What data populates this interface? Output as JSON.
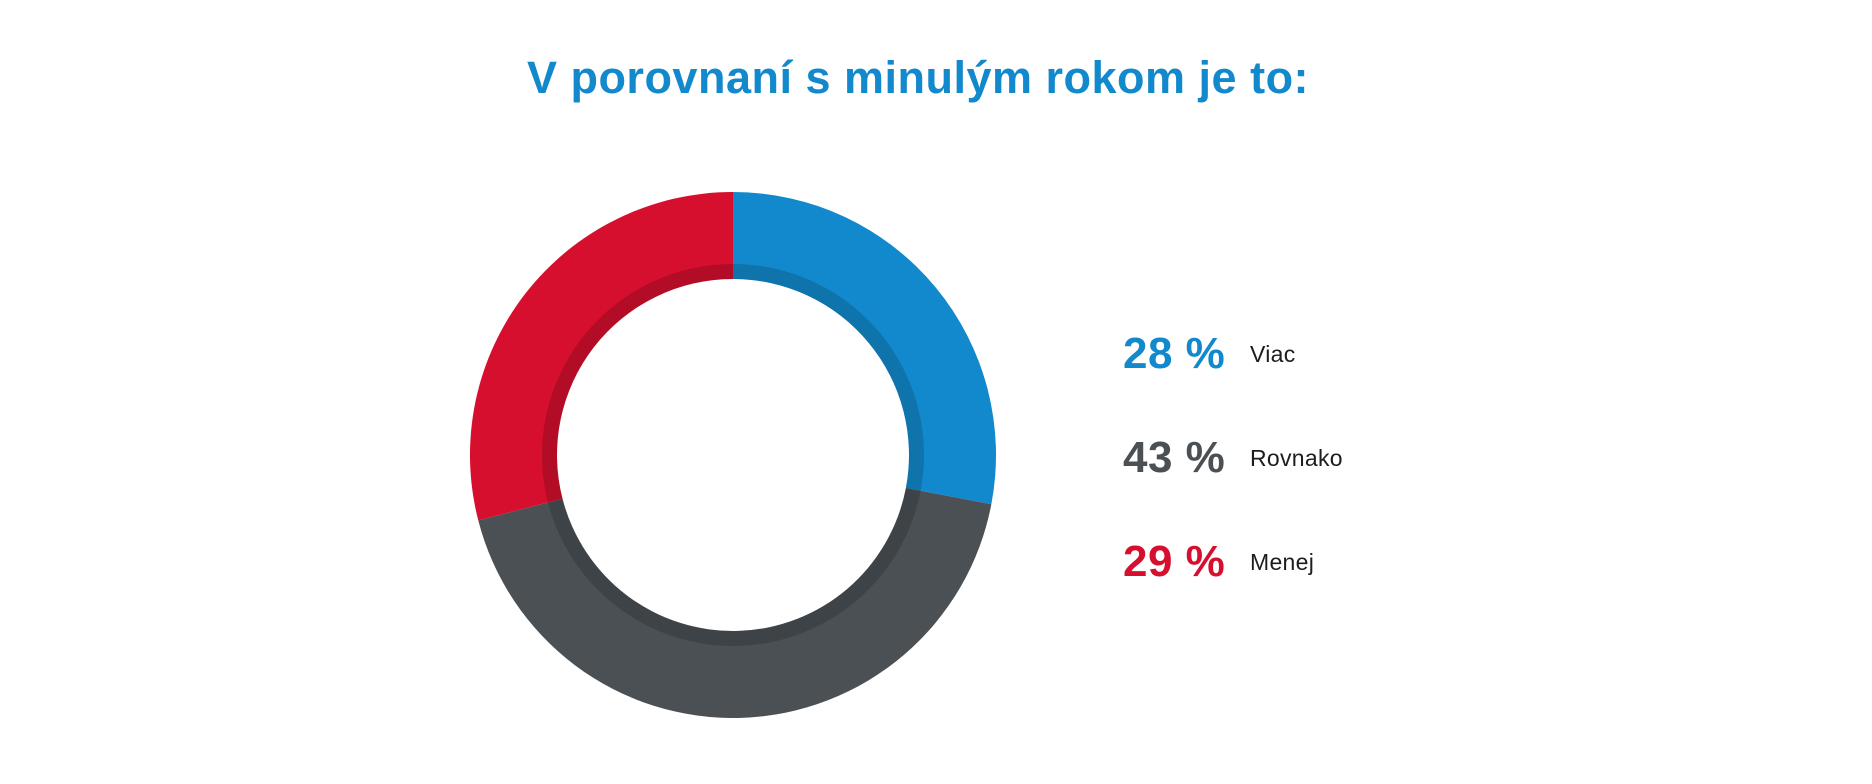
{
  "page": {
    "background": "#ffffff"
  },
  "title": {
    "text": "V porovnaní s minulým rokom je to:",
    "color": "#1389cd"
  },
  "chart_data": {
    "type": "pie",
    "subtype": "donut",
    "title": "V porovnaní s minulým rokom je to:",
    "categories": [
      "Viac",
      "Rovnako",
      "Menej"
    ],
    "values": [
      28,
      43,
      29
    ],
    "unit": "%",
    "colors": [
      "#1389cd",
      "#4b5055",
      "#d60f2e"
    ],
    "start_angle_deg": 0,
    "direction": "clockwise",
    "inner_radius_ratio": 0.67,
    "inner_shadow": true,
    "legend_position": "right",
    "data_labels": "none"
  },
  "legend": {
    "items": [
      {
        "value": "28 %",
        "label": "Viac",
        "color": "#1389cd"
      },
      {
        "value": "43 %",
        "label": "Rovnako",
        "color": "#4b5055"
      },
      {
        "value": "29 %",
        "label": "Menej",
        "color": "#d60f2e"
      }
    ]
  }
}
